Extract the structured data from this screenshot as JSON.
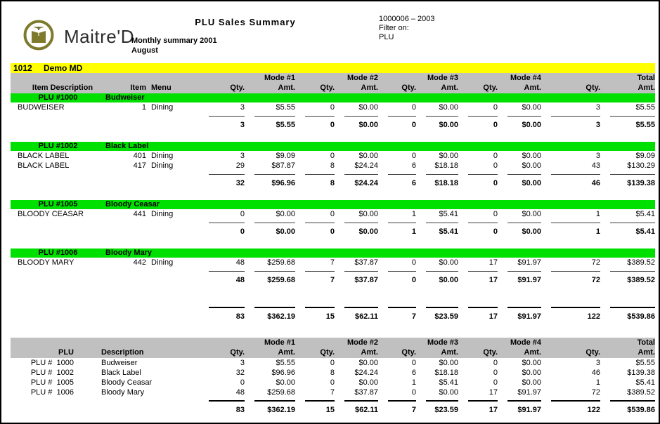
{
  "page": {
    "logo_text": "Maitre'D",
    "title": "PLU Sales Summary",
    "period_line1": "Monthly summary 2001",
    "period_line2": "August",
    "report_id": "1000006 – 2003",
    "filter_label": "Filter on:",
    "filter_value": "PLU"
  },
  "restaurant": {
    "number": "1012",
    "name": "Demo MD"
  },
  "columns": {
    "item_description": "Item Description",
    "item": "Item",
    "menu": "Menu",
    "qty": "Qty.",
    "amt": "Amt.",
    "mode1": "Mode #1",
    "mode2": "Mode #2",
    "mode3": "Mode #3",
    "mode4": "Mode #4",
    "total": "Total",
    "plu": "PLU",
    "description": "Description"
  },
  "colors": {
    "section_bar": "#00e000",
    "shop_bar": "#ffff00",
    "header_band": "#c0c0c0",
    "logo_olive": "#7d7a2c"
  },
  "sections": [
    {
      "plu": "PLU #1000",
      "name": "Budweiser",
      "items": [
        {
          "desc": "BUDWEISER",
          "item": "1",
          "menu": "Dining",
          "vals": [
            "3",
            "$5.55",
            "0",
            "$0.00",
            "0",
            "$0.00",
            "0",
            "$0.00",
            "3",
            "$5.55"
          ]
        }
      ],
      "subtotal": [
        "3",
        "$5.55",
        "0",
        "$0.00",
        "0",
        "$0.00",
        "0",
        "$0.00",
        "3",
        "$5.55"
      ]
    },
    {
      "plu": "PLU #1002",
      "name": "Black Label",
      "items": [
        {
          "desc": "BLACK LABEL",
          "item": "401",
          "menu": "Dining",
          "vals": [
            "3",
            "$9.09",
            "0",
            "$0.00",
            "0",
            "$0.00",
            "0",
            "$0.00",
            "3",
            "$9.09"
          ]
        },
        {
          "desc": "BLACK LABEL",
          "item": "417",
          "menu": "Dining",
          "vals": [
            "29",
            "$87.87",
            "8",
            "$24.24",
            "6",
            "$18.18",
            "0",
            "$0.00",
            "43",
            "$130.29"
          ]
        }
      ],
      "subtotal": [
        "32",
        "$96.96",
        "8",
        "$24.24",
        "6",
        "$18.18",
        "0",
        "$0.00",
        "46",
        "$139.38"
      ]
    },
    {
      "plu": "PLU #1005",
      "name": "Bloody Ceasar",
      "items": [
        {
          "desc": "BLOODY CEASAR",
          "item": "441",
          "menu": "Dining",
          "vals": [
            "0",
            "$0.00",
            "0",
            "$0.00",
            "1",
            "$5.41",
            "0",
            "$0.00",
            "1",
            "$5.41"
          ]
        }
      ],
      "subtotal": [
        "0",
        "$0.00",
        "0",
        "$0.00",
        "1",
        "$5.41",
        "0",
        "$0.00",
        "1",
        "$5.41"
      ]
    },
    {
      "plu": "PLU #1006",
      "name": "Bloody Mary",
      "items": [
        {
          "desc": "BLOODY MARY",
          "item": "442",
          "menu": "Dining",
          "vals": [
            "48",
            "$259.68",
            "7",
            "$37.87",
            "0",
            "$0.00",
            "17",
            "$91.97",
            "72",
            "$389.52"
          ]
        }
      ],
      "subtotal": [
        "48",
        "$259.68",
        "7",
        "$37.87",
        "0",
        "$0.00",
        "17",
        "$91.97",
        "72",
        "$389.52"
      ]
    }
  ],
  "grand_total": [
    "83",
    "$362.19",
    "15",
    "$62.11",
    "7",
    "$23.59",
    "17",
    "$91.97",
    "122",
    "$539.86"
  ],
  "summary": {
    "rows": [
      {
        "plu": "PLU #  1000",
        "desc": "Budweiser",
        "vals": [
          "3",
          "$5.55",
          "0",
          "$0.00",
          "0",
          "$0.00",
          "0",
          "$0.00",
          "3",
          "$5.55"
        ]
      },
      {
        "plu": "PLU #  1002",
        "desc": "Black Label",
        "vals": [
          "32",
          "$96.96",
          "8",
          "$24.24",
          "6",
          "$18.18",
          "0",
          "$0.00",
          "46",
          "$139.38"
        ]
      },
      {
        "plu": "PLU #  1005",
        "desc": "Bloody Ceasar",
        "vals": [
          "0",
          "$0.00",
          "0",
          "$0.00",
          "1",
          "$5.41",
          "0",
          "$0.00",
          "1",
          "$5.41"
        ]
      },
      {
        "plu": "PLU #  1006",
        "desc": "Bloody Mary",
        "vals": [
          "48",
          "$259.68",
          "7",
          "$37.87",
          "0",
          "$0.00",
          "17",
          "$91.97",
          "72",
          "$389.52"
        ]
      }
    ],
    "total": [
      "83",
      "$362.19",
      "15",
      "$62.11",
      "7",
      "$23.59",
      "17",
      "$91.97",
      "122",
      "$539.86"
    ]
  }
}
